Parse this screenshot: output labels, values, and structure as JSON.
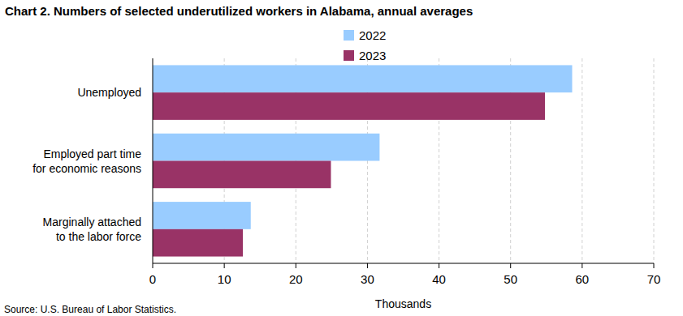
{
  "chart_data": {
    "type": "bar",
    "orientation": "horizontal",
    "title": "Chart 2. Numbers of selected underutilized workers in Alabama, annual averages",
    "x_label": "Thousands",
    "source": "Source: U.S. Bureau of Labor Statistics.",
    "categories": [
      "Unemployed",
      "Employed part time\nfor economic reasons",
      "Marginally attached\nto the labor force"
    ],
    "series": [
      {
        "name": "2022",
        "color": "#99ccff",
        "values": [
          58.6,
          31.7,
          13.7
        ]
      },
      {
        "name": "2023",
        "color": "#993366",
        "values": [
          54.8,
          24.9,
          12.6
        ]
      }
    ],
    "xlim": [
      0,
      70
    ],
    "xticks": [
      0,
      10,
      20,
      30,
      40,
      50,
      60,
      70
    ],
    "grid": true,
    "legend": "top"
  }
}
